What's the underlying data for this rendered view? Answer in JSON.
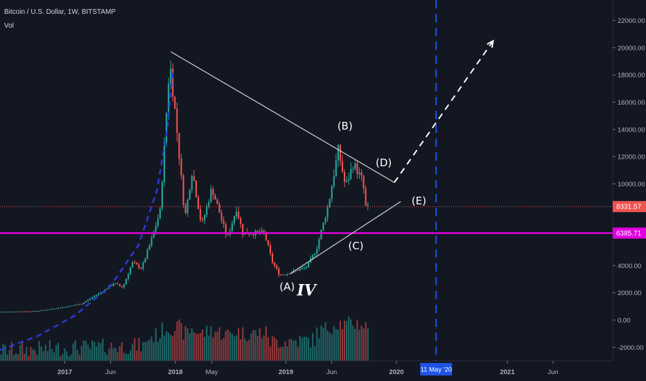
{
  "header": {
    "title": "Bitcoin / U.S. Dollar, 1W, BITSTAMP",
    "volume_label": "Vol"
  },
  "colors": {
    "background": "#131722",
    "up": "#26a69a",
    "down": "#ef5350",
    "price_line": "#ef5350",
    "support_line": "#e000e0",
    "trend_lines": "#c8c8c8",
    "projection": "#ffffff",
    "halving_line": "#1e53e5",
    "curve": "#2b3bd6"
  },
  "chart_data": {
    "type": "candlestick",
    "price_axis": {
      "ylim": [
        -3000,
        23500
      ],
      "ticks": [
        22000,
        20000,
        18000,
        16000,
        14000,
        12000,
        10000,
        8000,
        6000,
        4000,
        2000,
        0,
        -2000
      ],
      "tick_labels": [
        "22000.00",
        "20000.00",
        "18000.00",
        "16000.00",
        "14000.00",
        "12000.00",
        "10000.00",
        "",
        "",
        "4000.00",
        "2000.00",
        "0.00",
        "-2000.00"
      ]
    },
    "time_axis": {
      "range": [
        "2016-06-01",
        "2021-12-15"
      ],
      "ticks": [
        {
          "date": "2017-01-01",
          "label": "2017",
          "bold": true
        },
        {
          "date": "2017-06-01",
          "label": "Jun",
          "bold": false
        },
        {
          "date": "2018-01-01",
          "label": "2018",
          "bold": true
        },
        {
          "date": "2018-05-01",
          "label": "May",
          "bold": false
        },
        {
          "date": "2019-01-01",
          "label": "2019",
          "bold": true
        },
        {
          "date": "2019-06-01",
          "label": "Jun",
          "bold": false
        },
        {
          "date": "2020-01-01",
          "label": "2020",
          "bold": true
        },
        {
          "date": "2021-01-01",
          "label": "2021",
          "bold": true
        },
        {
          "date": "2021-06-01",
          "label": "Jun",
          "bold": false
        }
      ]
    },
    "price_keypoints": [
      {
        "date": "2016-06-01",
        "price": 600
      },
      {
        "date": "2016-10-01",
        "price": 650
      },
      {
        "date": "2017-01-01",
        "price": 950
      },
      {
        "date": "2017-03-01",
        "price": 1200
      },
      {
        "date": "2017-05-15",
        "price": 2200
      },
      {
        "date": "2017-06-15",
        "price": 2700
      },
      {
        "date": "2017-07-15",
        "price": 2400
      },
      {
        "date": "2017-08-15",
        "price": 4200
      },
      {
        "date": "2017-09-15",
        "price": 3800
      },
      {
        "date": "2017-10-15",
        "price": 5700
      },
      {
        "date": "2017-11-15",
        "price": 8000
      },
      {
        "date": "2017-12-17",
        "price": 19000
      },
      {
        "date": "2018-01-05",
        "price": 15000
      },
      {
        "date": "2018-02-05",
        "price": 7500
      },
      {
        "date": "2018-03-01",
        "price": 11000
      },
      {
        "date": "2018-04-01",
        "price": 6900
      },
      {
        "date": "2018-05-05",
        "price": 9700
      },
      {
        "date": "2018-06-25",
        "price": 6000
      },
      {
        "date": "2018-07-25",
        "price": 8200
      },
      {
        "date": "2018-08-15",
        "price": 6400
      },
      {
        "date": "2018-10-25",
        "price": 6400
      },
      {
        "date": "2018-11-20",
        "price": 4300
      },
      {
        "date": "2018-12-15",
        "price": 3300
      },
      {
        "date": "2019-01-20",
        "price": 3500
      },
      {
        "date": "2019-03-15",
        "price": 3900
      },
      {
        "date": "2019-04-15",
        "price": 5200
      },
      {
        "date": "2019-05-25",
        "price": 8500
      },
      {
        "date": "2019-06-26",
        "price": 12500
      },
      {
        "date": "2019-07-20",
        "price": 9800
      },
      {
        "date": "2019-08-15",
        "price": 11500
      },
      {
        "date": "2019-09-15",
        "price": 10200
      },
      {
        "date": "2019-09-25",
        "price": 8300
      }
    ],
    "volume_baseline": -3000,
    "volume_max": 3500,
    "current_price": {
      "value": 8331.57,
      "label": "8331.57"
    },
    "support_level": {
      "value": 6385.71,
      "label": "6385.71"
    },
    "trend_lines": [
      {
        "from": {
          "date": "2017-12-17",
          "price": 19700
        },
        "to": {
          "date": "2019-12-25",
          "price": 10100
        }
      },
      {
        "from": {
          "date": "2019-01-15",
          "price": 3400
        },
        "to": {
          "date": "2020-01-15",
          "price": 8700
        }
      }
    ],
    "projection": {
      "from": {
        "date": "2019-12-25",
        "price": 10100
      },
      "to": {
        "date": "2020-11-15",
        "price": 20500
      }
    },
    "parabolic_curve": {
      "points": [
        {
          "date": "2016-06-01",
          "price": -2200
        },
        {
          "date": "2016-10-01",
          "price": -1200
        },
        {
          "date": "2017-02-01",
          "price": 300
        },
        {
          "date": "2017-06-01",
          "price": 2500
        },
        {
          "date": "2017-09-01",
          "price": 5500
        },
        {
          "date": "2017-11-01",
          "price": 9500
        },
        {
          "date": "2017-12-05",
          "price": 14000
        },
        {
          "date": "2017-12-25",
          "price": 18500
        }
      ]
    },
    "halving": {
      "date": "2020-05-11",
      "label": "11 May '20"
    },
    "wave_labels": [
      {
        "text": "(A)",
        "date": "2019-01-05",
        "price": 2200
      },
      {
        "text": "(B)",
        "date": "2019-07-15",
        "price": 14000
      },
      {
        "text": "(C)",
        "date": "2019-08-20",
        "price": 5200
      },
      {
        "text": "(D)",
        "date": "2019-11-20",
        "price": 11300
      },
      {
        "text": "(E)",
        "date": "2020-03-15",
        "price": 8500
      },
      {
        "text": "IV",
        "date": "2019-03-10",
        "price": 1800
      }
    ]
  }
}
